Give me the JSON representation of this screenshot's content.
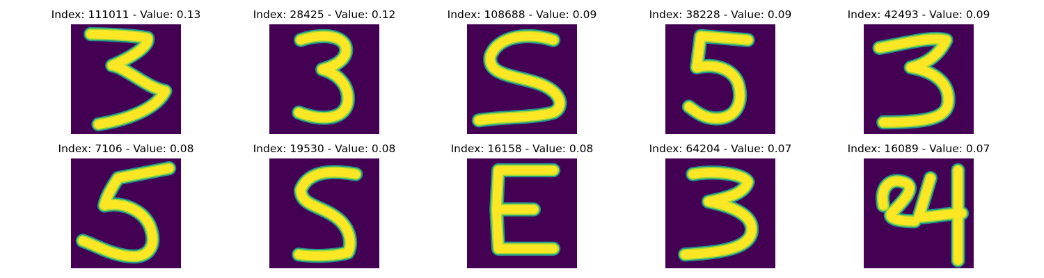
{
  "colors": {
    "background": "#440154",
    "stroke_core": "#fde725",
    "stroke_mid": "#9fda3a",
    "stroke_edge": "#21918c"
  },
  "panels": [
    {
      "title": "Index: 111011 - Value: 0.13",
      "digit": "3"
    },
    {
      "title": "Index: 28425 - Value: 0.12",
      "digit": "3"
    },
    {
      "title": "Index: 108688 - Value: 0.09",
      "digit": "5"
    },
    {
      "title": "Index: 38228 - Value: 0.09",
      "digit": "5"
    },
    {
      "title": "Index: 42493 - Value: 0.09",
      "digit": "3"
    },
    {
      "title": "Index: 7106 - Value: 0.08",
      "digit": "5"
    },
    {
      "title": "Index: 19530 - Value: 0.08",
      "digit": "5"
    },
    {
      "title": "Index: 16158 - Value: 0.08",
      "digit": "E"
    },
    {
      "title": "Index: 64204 - Value: 0.07",
      "digit": "3"
    },
    {
      "title": "Index: 16089 - Value: 0.07",
      "digit": "24"
    }
  ]
}
